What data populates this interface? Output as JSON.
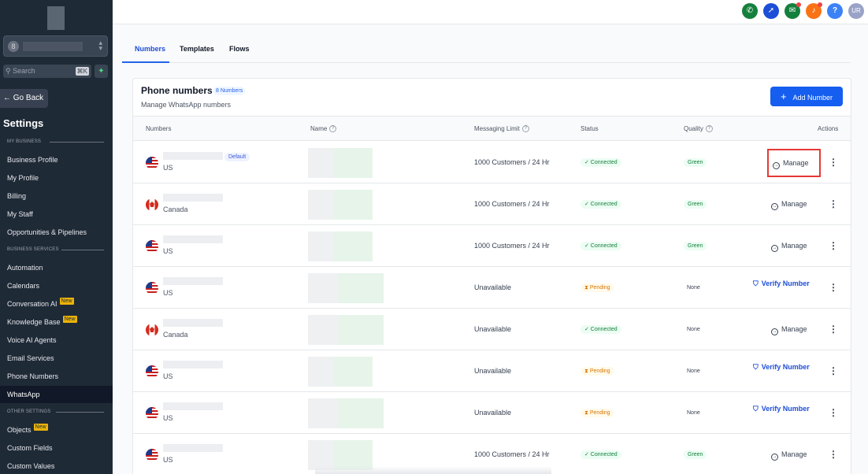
{
  "sidebar": {
    "avatar_letter": "8",
    "search_placeholder": "Search",
    "search_shortcut": "⌘K",
    "back_label": "← Go Back",
    "title": "Settings",
    "section_business": "MY BUSINESS",
    "section_services": "BUSINESS SERVICES",
    "section_other": "OTHER SETTINGS",
    "new_badge": "New",
    "items": {
      "business_profile": "Business Profile",
      "my_profile": "My Profile",
      "billing": "Billing",
      "my_staff": "My Staff",
      "opportunities": "Opportunities & Pipelines",
      "automation": "Automation",
      "calendars": "Calendars",
      "conversation_ai": "Conversation AI",
      "knowledge_base": "Knowledge Base",
      "voice_ai": "Voice AI Agents",
      "email_services": "Email Services",
      "phone_numbers": "Phone Numbers",
      "whatsapp": "WhatsApp",
      "objects": "Objects",
      "custom_fields": "Custom Fields",
      "custom_values": "Custom Values"
    }
  },
  "topbar": {
    "icons": [
      "phone-icon",
      "rocket-icon",
      "megaphone-icon",
      "bell-icon",
      "help-icon"
    ],
    "colors": {
      "phone": "#15803d",
      "rocket": "#1d4ed8",
      "megaphone": "#15803d",
      "bell": "#f97316",
      "help": "#3b82f6",
      "avatar": "#9aa3c7"
    },
    "user_initials": "UR",
    "help_glyph": "?"
  },
  "tabs": [
    "Numbers",
    "Templates",
    "Flows"
  ],
  "card": {
    "title": "Phone numbers",
    "count_badge": "8 Numbers",
    "subtitle": "Manage WhatsApp numbers",
    "add_button": "Add Number",
    "add_glyph": "+"
  },
  "table": {
    "headers": {
      "numbers": "Numbers",
      "name": "Name",
      "limit": "Messaging Limit",
      "status": "Status",
      "quality": "Quality",
      "actions": "Actions"
    },
    "default_badge": "Default",
    "manage_label": "Manage",
    "verify_label": "Verify Number",
    "rows": [
      {
        "flag": "us",
        "country": "US",
        "limit": "1000 Customers / 24 Hr",
        "status": "✓ Connected",
        "quality": "Green",
        "action": "manage"
      },
      {
        "flag": "ca",
        "country": "Canada",
        "limit": "1000 Customers / 24 Hr",
        "status": "✓ Connected",
        "quality": "Green",
        "action": "manage"
      },
      {
        "flag": "us",
        "country": "US",
        "limit": "1000 Customers / 24 Hr",
        "status": "✓ Connected",
        "quality": "Green",
        "action": "manage"
      },
      {
        "flag": "us",
        "country": "US",
        "limit": "Unavailable",
        "status": "⧗ Pending",
        "quality": "None",
        "action": "verify"
      },
      {
        "flag": "ca",
        "country": "Canada",
        "limit": "Unavailable",
        "status": "✓ Connected",
        "quality": "None",
        "action": "manage"
      },
      {
        "flag": "us",
        "country": "US",
        "limit": "Unavailable",
        "status": "⧗ Pending",
        "quality": "None",
        "action": "verify"
      },
      {
        "flag": "us",
        "country": "US",
        "limit": "Unavailable",
        "status": "⧗ Pending",
        "quality": "None",
        "action": "verify"
      },
      {
        "flag": "us",
        "country": "US",
        "limit": "1000 Customers / 24 Hr",
        "status": "✓ Connected",
        "quality": "Green",
        "action": "manage"
      }
    ]
  },
  "colors": {
    "accent": "#155eef",
    "sidebar": "#1f2a37",
    "highlight": "#e53935"
  }
}
